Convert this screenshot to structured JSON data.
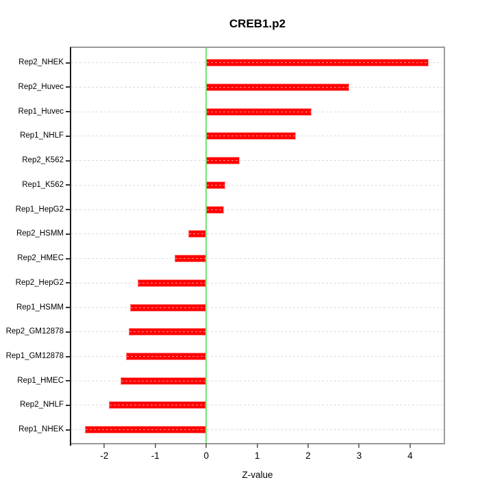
{
  "figure": {
    "title": "CREB1.p2",
    "xlabel": "Z-value"
  },
  "chart_data": {
    "type": "bar",
    "orientation": "horizontal",
    "title": "CREB1.p2",
    "xlabel": "Z-value",
    "ylabel": "",
    "categories": [
      "Rep2_NHEK",
      "Rep2_Huvec",
      "Rep1_Huvec",
      "Rep1_NHLF",
      "Rep2_K562",
      "Rep1_K562",
      "Rep1_HepG2",
      "Rep2_HSMM",
      "Rep2_HMEC",
      "Rep2_HepG2",
      "Rep1_HSMM",
      "Rep2_GM12878",
      "Rep1_GM12878",
      "Rep1_HMEC",
      "Rep2_NHLF",
      "Rep1_NHEK"
    ],
    "values": [
      4.37,
      2.81,
      2.06,
      1.76,
      0.66,
      0.37,
      0.34,
      -0.35,
      -0.62,
      -1.34,
      -1.49,
      -1.52,
      -1.57,
      -1.68,
      -1.91,
      -2.38
    ],
    "xlim": [
      -2.65,
      4.66
    ],
    "xticks": [
      -2,
      -1,
      0,
      1,
      2,
      3,
      4
    ],
    "zero_reference_line": 0,
    "grid": "dashed horizontal light-gray line at each category",
    "legend": "none",
    "colors": {
      "bar": "#FF0000",
      "bar_border": "#FF9090",
      "zero_line": "#70E670",
      "frame": "#999999",
      "axis_line": "#1a1a1a",
      "grid_line": "#DCDCDC",
      "text": "#000000",
      "background": "#FFFFFF"
    }
  }
}
